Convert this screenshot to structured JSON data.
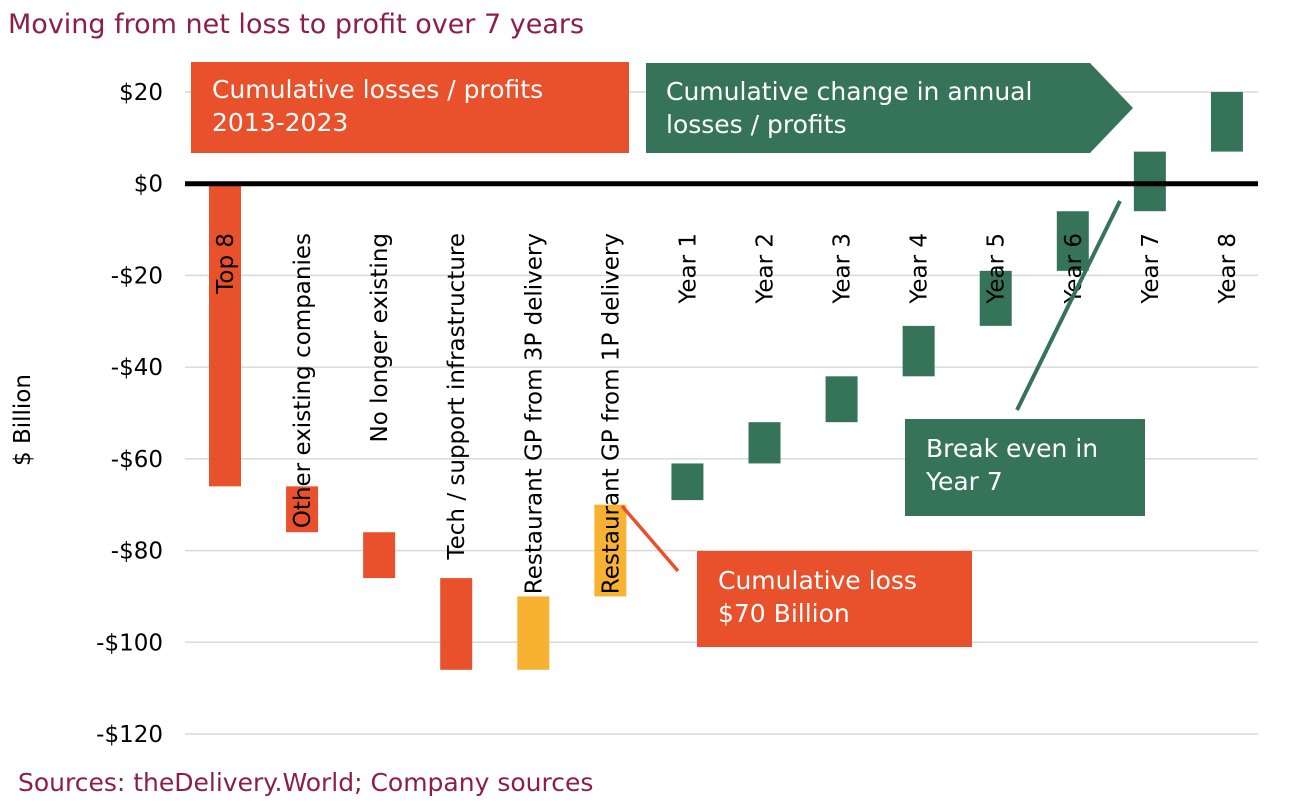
{
  "colors": {
    "title": "#8B1E4B",
    "orange": "#E8512B",
    "yellow": "#F8B232",
    "green": "#36745A",
    "zero_line": "#000000",
    "grid": "#D9D9D9"
  },
  "chart_data": {
    "type": "bar",
    "subtype": "floating-waterfall",
    "title": "Moving from net loss to profit over 7 years",
    "source": "Sources: theDelivery.World; Company sources",
    "ylabel": "$ Billion",
    "xlabel": "",
    "ylim": [
      -120,
      20
    ],
    "yticks": [
      20,
      0,
      -20,
      -40,
      -60,
      -80,
      -100,
      -120
    ],
    "ytick_labels": [
      "$20",
      "$0",
      "-$20",
      "-$40",
      "-$60",
      "-$80",
      "-$100",
      "-$120"
    ],
    "grid": true,
    "categories": [
      "Top 8",
      "Other existing companies",
      "No longer existing",
      "Tech / support infrastructure",
      "Restaurant GP from 3P delivery",
      "Restaurant GP from 1P delivery",
      "Year 1",
      "Year 2",
      "Year 3",
      "Year 4",
      "Year 5",
      "Year 6",
      "Year 7",
      "Year 8"
    ],
    "bars": [
      {
        "start": 0,
        "end": -66,
        "color": "orange"
      },
      {
        "start": -66,
        "end": -76,
        "color": "orange"
      },
      {
        "start": -76,
        "end": -86,
        "color": "orange"
      },
      {
        "start": -86,
        "end": -106,
        "color": "orange"
      },
      {
        "start": -106,
        "end": -90,
        "color": "yellow"
      },
      {
        "start": -90,
        "end": -70,
        "color": "yellow"
      },
      {
        "start": -69,
        "end": -61,
        "color": "green"
      },
      {
        "start": -61,
        "end": -52,
        "color": "green"
      },
      {
        "start": -52,
        "end": -42,
        "color": "green"
      },
      {
        "start": -42,
        "end": -31,
        "color": "green"
      },
      {
        "start": -31,
        "end": -19,
        "color": "green"
      },
      {
        "start": -19,
        "end": -6,
        "color": "green"
      },
      {
        "start": -6,
        "end": 7,
        "color": "green"
      },
      {
        "start": 7,
        "end": 20,
        "color": "green"
      }
    ],
    "annotations": [
      {
        "key": "losses_header",
        "lines": [
          "Cumulative losses / profits",
          "2013-2023"
        ]
      },
      {
        "key": "change_header",
        "lines": [
          "Cumulative change in annual",
          "losses / profits"
        ]
      },
      {
        "key": "break_even",
        "lines": [
          "Break even in",
          "Year 7"
        ]
      },
      {
        "key": "cum_loss",
        "lines": [
          "Cumulative loss",
          "$70 Billion"
        ]
      }
    ]
  }
}
